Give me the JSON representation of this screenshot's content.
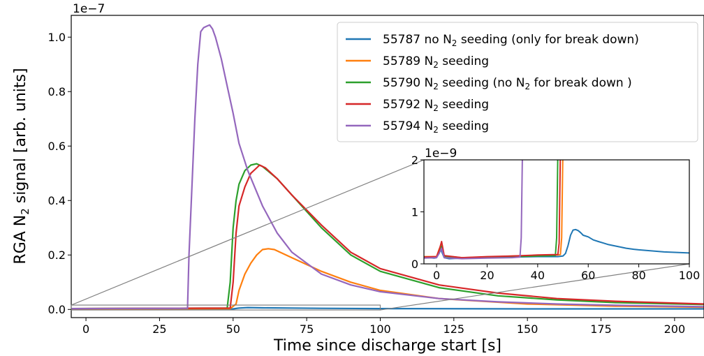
{
  "chart_data": [
    {
      "type": "line",
      "xlabel": "Time since discharge start [s]",
      "ylabel_prefix": "RGA N",
      "ylabel_sub": "2",
      "ylabel_suffix": " signal [arb. units]",
      "y_offset_label": "1e−7",
      "xlim": [
        -5,
        210
      ],
      "ylim": [
        -0.03,
        1.08
      ],
      "xticks": [
        0,
        25,
        50,
        75,
        100,
        125,
        150,
        175,
        200
      ],
      "xtick_labels": [
        "0",
        "25",
        "50",
        "75",
        "100",
        "125",
        "150",
        "175",
        "200"
      ],
      "yticks": [
        0.0,
        0.2,
        0.4,
        0.6,
        0.8,
        1.0
      ],
      "ytick_labels": [
        "0.0",
        "0.2",
        "0.4",
        "0.6",
        "0.8",
        "1.0"
      ],
      "grid": false,
      "legend_position": "top-right",
      "series": [
        {
          "name_parts": [
            "55787 no N",
            "2",
            " seeding (only for break down)"
          ],
          "color": "#1f77b4",
          "points": [
            [
              -5,
              0.001
            ],
            [
              50,
              0.002
            ],
            [
              52,
              0.005
            ],
            [
              55,
              0.007
            ],
            [
              60,
              0.006
            ],
            [
              70,
              0.005
            ],
            [
              80,
              0.004
            ],
            [
              100,
              0.003
            ],
            [
              150,
              0.002
            ],
            [
              210,
              0.002
            ]
          ]
        },
        {
          "name_parts": [
            "55789 N",
            "2",
            " seeding"
          ],
          "color": "#ff7f0e",
          "points": [
            [
              -5,
              0.002
            ],
            [
              49,
              0.003
            ],
            [
              51,
              0.02
            ],
            [
              52,
              0.07
            ],
            [
              54,
              0.13
            ],
            [
              56,
              0.17
            ],
            [
              58,
              0.2
            ],
            [
              60,
              0.22
            ],
            [
              62,
              0.223
            ],
            [
              64,
              0.22
            ],
            [
              70,
              0.19
            ],
            [
              80,
              0.14
            ],
            [
              90,
              0.1
            ],
            [
              100,
              0.07
            ],
            [
              120,
              0.04
            ],
            [
              150,
              0.02
            ],
            [
              180,
              0.012
            ],
            [
              210,
              0.008
            ]
          ]
        },
        {
          "name_parts": [
            "55790 N",
            "2",
            " seeding (no N",
            "2",
            " for break down )"
          ],
          "color": "#2ca02c",
          "points": [
            [
              -5,
              0.003
            ],
            [
              48,
              0.005
            ],
            [
              49,
              0.1
            ],
            [
              50,
              0.3
            ],
            [
              51,
              0.4
            ],
            [
              52,
              0.46
            ],
            [
              54,
              0.51
            ],
            [
              56,
              0.53
            ],
            [
              58,
              0.535
            ],
            [
              60,
              0.525
            ],
            [
              65,
              0.48
            ],
            [
              70,
              0.42
            ],
            [
              80,
              0.3
            ],
            [
              90,
              0.2
            ],
            [
              100,
              0.14
            ],
            [
              120,
              0.08
            ],
            [
              140,
              0.05
            ],
            [
              160,
              0.035
            ],
            [
              180,
              0.025
            ],
            [
              210,
              0.018
            ]
          ]
        },
        {
          "name_parts": [
            "55792 N",
            "2",
            " seeding"
          ],
          "color": "#d62728",
          "points": [
            [
              -5,
              0.003
            ],
            [
              49,
              0.005
            ],
            [
              50,
              0.1
            ],
            [
              51,
              0.28
            ],
            [
              52,
              0.38
            ],
            [
              54,
              0.45
            ],
            [
              56,
              0.5
            ],
            [
              58,
              0.52
            ],
            [
              59,
              0.53
            ],
            [
              61,
              0.52
            ],
            [
              65,
              0.48
            ],
            [
              70,
              0.42
            ],
            [
              80,
              0.31
            ],
            [
              90,
              0.21
            ],
            [
              100,
              0.15
            ],
            [
              120,
              0.09
            ],
            [
              140,
              0.06
            ],
            [
              160,
              0.04
            ],
            [
              180,
              0.03
            ],
            [
              210,
              0.02
            ]
          ]
        },
        {
          "name_parts": [
            "55794 N",
            "2",
            " seeding"
          ],
          "color": "#9467bd",
          "points": [
            [
              -5,
              0.003
            ],
            [
              34.5,
              0.004
            ],
            [
              35,
              0.2
            ],
            [
              36,
              0.45
            ],
            [
              37,
              0.7
            ],
            [
              38,
              0.9
            ],
            [
              39,
              1.02
            ],
            [
              40,
              1.035
            ],
            [
              41,
              1.04
            ],
            [
              42,
              1.045
            ],
            [
              43,
              1.03
            ],
            [
              44,
              1.0
            ],
            [
              46,
              0.92
            ],
            [
              48,
              0.82
            ],
            [
              50,
              0.72
            ],
            [
              52,
              0.61
            ],
            [
              55,
              0.51
            ],
            [
              60,
              0.38
            ],
            [
              65,
              0.28
            ],
            [
              70,
              0.21
            ],
            [
              80,
              0.13
            ],
            [
              90,
              0.09
            ],
            [
              100,
              0.065
            ],
            [
              120,
              0.04
            ],
            [
              140,
              0.028
            ],
            [
              160,
              0.02
            ],
            [
              180,
              0.015
            ],
            [
              210,
              0.01
            ]
          ]
        }
      ]
    },
    {
      "type": "line",
      "role": "inset",
      "y_offset_label": "1e−9",
      "xlim": [
        -5,
        100
      ],
      "ylim": [
        0,
        2
      ],
      "xticks": [
        0,
        20,
        40,
        60,
        80,
        100
      ],
      "xtick_labels": [
        "0",
        "20",
        "40",
        "60",
        "80",
        "100"
      ],
      "yticks": [
        0,
        1,
        2
      ],
      "ytick_labels": [
        "0",
        "1",
        "2"
      ],
      "series": [
        {
          "color": "#1f77b4",
          "points": [
            [
              -5,
              0.13
            ],
            [
              -3,
              0.12
            ],
            [
              -1,
              0.11
            ],
            [
              0,
              0.12
            ],
            [
              1,
              0.22
            ],
            [
              1.5,
              0.32
            ],
            [
              2,
              0.24
            ],
            [
              3,
              0.12
            ],
            [
              5,
              0.1
            ],
            [
              10,
              0.11
            ],
            [
              20,
              0.12
            ],
            [
              30,
              0.13
            ],
            [
              40,
              0.14
            ],
            [
              48,
              0.14
            ],
            [
              50,
              0.15
            ],
            [
              51,
              0.2
            ],
            [
              52,
              0.35
            ],
            [
              53,
              0.55
            ],
            [
              54,
              0.65
            ],
            [
              55,
              0.66
            ],
            [
              56,
              0.64
            ],
            [
              57,
              0.6
            ],
            [
              58,
              0.55
            ],
            [
              60,
              0.52
            ],
            [
              62,
              0.46
            ],
            [
              64,
              0.43
            ],
            [
              66,
              0.4
            ],
            [
              68,
              0.37
            ],
            [
              70,
              0.35
            ],
            [
              72,
              0.33
            ],
            [
              75,
              0.3
            ],
            [
              78,
              0.28
            ],
            [
              80,
              0.27
            ],
            [
              85,
              0.25
            ],
            [
              90,
              0.23
            ],
            [
              95,
              0.22
            ],
            [
              100,
              0.21
            ]
          ]
        },
        {
          "color": "#ff7f0e",
          "points": [
            [
              -5,
              0.14
            ],
            [
              0,
              0.14
            ],
            [
              1,
              0.28
            ],
            [
              2,
              0.38
            ],
            [
              3,
              0.15
            ],
            [
              10,
              0.12
            ],
            [
              20,
              0.13
            ],
            [
              30,
              0.15
            ],
            [
              40,
              0.16
            ],
            [
              48,
              0.17
            ],
            [
              49,
              0.18
            ],
            [
              49.5,
              0.5
            ],
            [
              50,
              2.2
            ]
          ]
        },
        {
          "color": "#2ca02c",
          "points": [
            [
              -5,
              0.12
            ],
            [
              0,
              0.13
            ],
            [
              1,
              0.2
            ],
            [
              2,
              0.34
            ],
            [
              3,
              0.14
            ],
            [
              10,
              0.11
            ],
            [
              20,
              0.12
            ],
            [
              30,
              0.14
            ],
            [
              40,
              0.15
            ],
            [
              47,
              0.16
            ],
            [
              47.5,
              0.5
            ],
            [
              48,
              2.2
            ]
          ]
        },
        {
          "color": "#d62728",
          "points": [
            [
              -5,
              0.13
            ],
            [
              0,
              0.14
            ],
            [
              1,
              0.26
            ],
            [
              2,
              0.43
            ],
            [
              3,
              0.16
            ],
            [
              10,
              0.12
            ],
            [
              20,
              0.14
            ],
            [
              30,
              0.15
            ],
            [
              40,
              0.17
            ],
            [
              48,
              0.18
            ],
            [
              48.5,
              0.4
            ],
            [
              49,
              2.2
            ]
          ]
        },
        {
          "color": "#9467bd",
          "points": [
            [
              -5,
              0.11
            ],
            [
              0,
              0.12
            ],
            [
              1,
              0.2
            ],
            [
              2,
              0.3
            ],
            [
              3,
              0.12
            ],
            [
              10,
              0.1
            ],
            [
              20,
              0.11
            ],
            [
              30,
              0.12
            ],
            [
              33,
              0.13
            ],
            [
              33.5,
              0.5
            ],
            [
              34,
              2.2
            ]
          ]
        }
      ]
    }
  ]
}
